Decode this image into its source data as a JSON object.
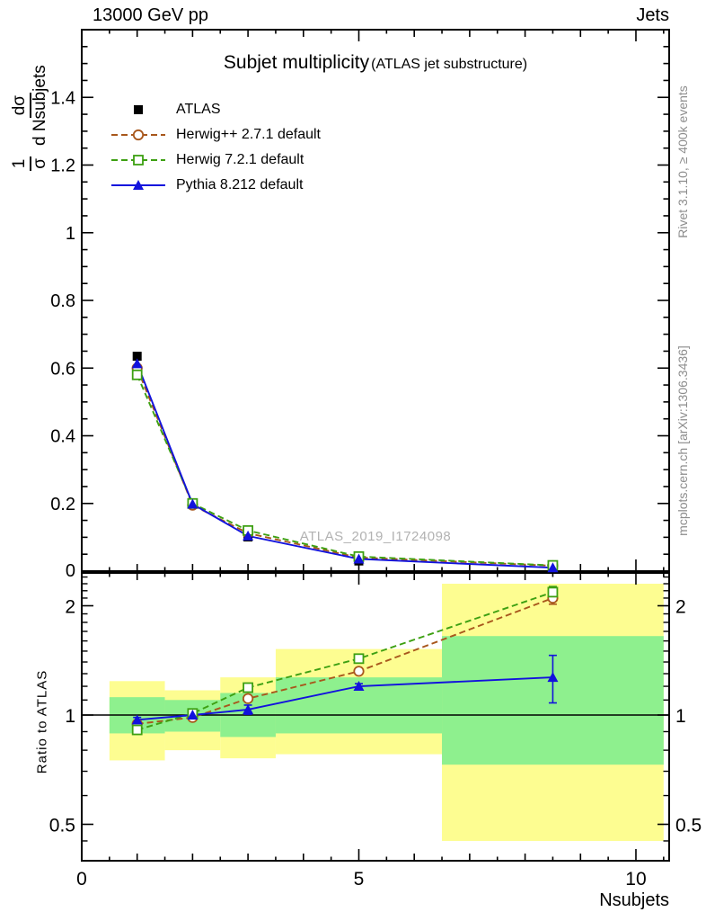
{
  "header": {
    "left": "13000 GeV pp",
    "right": "Jets"
  },
  "title": {
    "main": "Subjet multiplicity",
    "sub": "(ATLAS jet substructure)"
  },
  "watermark": "ATLAS_2019_I1724098",
  "notes": {
    "right_top": "Rivet 3.1.10, ≥ 400k events",
    "right_bottom": "mcplots.cern.ch [arXiv:1306.3436]"
  },
  "axes": {
    "xlabel": "Nsubjets",
    "ratio_ylabel": "Ratio to ATLAS",
    "ylabel_frac": {
      "num1": "1",
      "den1": "σ",
      "num2": "dσ",
      "den2": "d Nsubjets"
    }
  },
  "colors": {
    "atlas": "#000000",
    "herwigpp": "#a8571c",
    "herwig7": "#3da012",
    "pythia": "#1212dd",
    "band_yellow": "#fdfd91",
    "band_green": "#8ef08e",
    "gray_text": "#8c8c8c",
    "watermark": "#b2b2b2"
  },
  "chart_data": [
    {
      "type": "line",
      "panel": "main",
      "title": "Subjet multiplicity (ATLAS jet substructure)",
      "xlabel": "Nsubjets",
      "ylabel": "1/σ dσ/d Nsubjets",
      "x": [
        1,
        2,
        3,
        5,
        8.5
      ],
      "xlim": [
        0,
        10.6
      ],
      "ylim": [
        0,
        1.6
      ],
      "xticks": [
        0,
        5,
        10
      ],
      "xtick_labels": [
        "0",
        "5",
        "10"
      ],
      "yticks": [
        0,
        0.2,
        0.4,
        0.6,
        0.8,
        1.0,
        1.2,
        1.4
      ],
      "ytick_labels": [
        "0",
        "0.2",
        "0.4",
        "0.6",
        "0.8",
        "1",
        "1.2",
        "1.4"
      ],
      "grid": false,
      "legend_position": "upper-left-inside",
      "series": [
        {
          "name": "ATLAS",
          "color": "#000000",
          "marker": "square-filled",
          "line": "none",
          "values": [
            0.635,
            0.198,
            0.101,
            0.03,
            0.008
          ]
        },
        {
          "name": "Herwig++ 2.7.1 default",
          "color": "#a8571c",
          "marker": "circle-open",
          "line": "dashed",
          "values": [
            0.6,
            0.195,
            0.112,
            0.04,
            0.016
          ]
        },
        {
          "name": "Herwig 7.2.1 default",
          "color": "#3da012",
          "marker": "square-open",
          "line": "dashed",
          "values": [
            0.58,
            0.2,
            0.12,
            0.043,
            0.017
          ]
        },
        {
          "name": "Pythia 8.212 default",
          "color": "#1212dd",
          "marker": "triangle-filled",
          "line": "solid",
          "values": [
            0.613,
            0.198,
            0.104,
            0.036,
            0.01
          ]
        }
      ]
    },
    {
      "type": "line",
      "panel": "ratio",
      "ylabel": "Ratio to ATLAS",
      "yscale": "log",
      "x": [
        1,
        2,
        3,
        5,
        8.5
      ],
      "xlim": [
        0,
        10.6
      ],
      "ylim": [
        0.4,
        2.46
      ],
      "yticks": [
        0.5,
        1,
        2
      ],
      "ytick_labels": [
        "0.5",
        "1",
        "2"
      ],
      "reference_line": 1,
      "bands": [
        {
          "x0": 0.5,
          "x1": 1.5,
          "yellow": [
            0.75,
            1.24
          ],
          "green": [
            0.89,
            1.12
          ]
        },
        {
          "x0": 1.5,
          "x1": 2.5,
          "yellow": [
            0.8,
            1.17
          ],
          "green": [
            0.9,
            1.1
          ]
        },
        {
          "x0": 2.5,
          "x1": 3.5,
          "yellow": [
            0.76,
            1.27
          ],
          "green": [
            0.87,
            1.15
          ]
        },
        {
          "x0": 3.5,
          "x1": 6.5,
          "yellow": [
            0.78,
            1.52
          ],
          "green": [
            0.89,
            1.27
          ]
        },
        {
          "x0": 6.5,
          "x1": 10.5,
          "yellow": [
            0.45,
            2.3
          ],
          "green": [
            0.73,
            1.65
          ]
        }
      ],
      "series": [
        {
          "name": "Herwig++ 2.7.1 default",
          "color": "#a8571c",
          "marker": "circle-open",
          "line": "dashed",
          "values": [
            0.945,
            0.985,
            1.11,
            1.32,
            2.1
          ],
          "errs": [
            0.02,
            0.012,
            0.012,
            0.02,
            0.08
          ]
        },
        {
          "name": "Herwig 7.2.1 default",
          "color": "#3da012",
          "marker": "square-open",
          "line": "dashed",
          "values": [
            0.91,
            1.01,
            1.19,
            1.43,
            2.18
          ],
          "errs": [
            0.02,
            0.012,
            0.015,
            0.02,
            0.08
          ]
        },
        {
          "name": "Pythia 8.212 default",
          "color": "#1212dd",
          "marker": "triangle-filled",
          "line": "solid",
          "values": [
            0.97,
            1.0,
            1.035,
            1.2,
            1.27
          ],
          "errs": [
            0.015,
            0.01,
            0.03,
            0.02,
            0.19
          ]
        }
      ]
    }
  ]
}
